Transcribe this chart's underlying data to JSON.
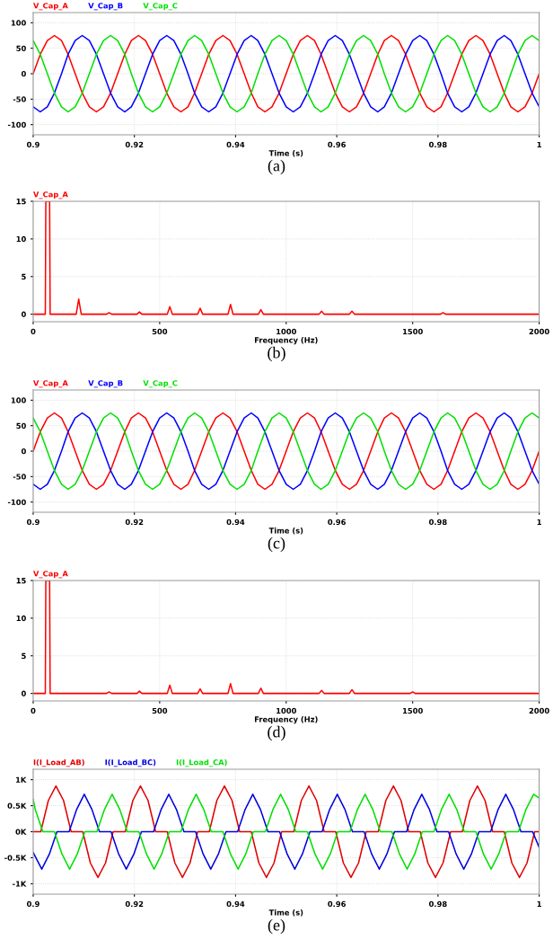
{
  "chart_data": [
    {
      "type": "line",
      "xlabel": "Time (s)",
      "annotations": [
        "(a)"
      ],
      "legend": "top left",
      "grid": true,
      "x": [
        0.9,
        0.9014,
        0.9028,
        0.9042,
        0.9056,
        0.9069,
        0.9083,
        0.9097,
        0.9111,
        0.9125,
        0.9139,
        0.9153,
        0.9167,
        0.9181,
        0.9194,
        0.9208,
        0.9222,
        0.9236,
        0.925,
        0.9264,
        0.9278,
        0.9292,
        0.9306,
        0.9319,
        0.9333,
        0.9347,
        0.9361,
        0.9375,
        0.9389,
        0.9403,
        0.9417,
        0.9431,
        0.9444,
        0.9458,
        0.9472,
        0.9486,
        0.95,
        0.9514,
        0.9528,
        0.9542,
        0.9556,
        0.9569,
        0.9583,
        0.9597,
        0.9611,
        0.9625,
        0.9639,
        0.9653,
        0.9667,
        0.9681,
        0.9694,
        0.9708,
        0.9722,
        0.9736,
        0.975,
        0.9764,
        0.9778,
        0.9792,
        0.9806,
        0.9819,
        0.9833,
        0.9847,
        0.9861,
        0.9875,
        0.9889,
        0.9903,
        0.9917,
        0.9931,
        0.9944,
        0.9958,
        0.9972,
        0.9986,
        1.0
      ],
      "xlim": [
        0.9,
        1.0
      ],
      "xticks": [
        0.9,
        0.92,
        0.94,
        0.96,
        0.98,
        1
      ],
      "ylim": [
        -120,
        120
      ],
      "yticks": [
        -100,
        -50,
        0,
        50,
        100
      ],
      "series": [
        {
          "name": "V_Cap_A",
          "color": "#ff0000",
          "values": [
            0,
            38,
            65,
            75,
            65,
            38,
            0,
            -38,
            -65,
            -75,
            -65,
            -38,
            0,
            38,
            65,
            75,
            65,
            38,
            0,
            -38,
            -65,
            -75,
            -65,
            -38,
            0,
            38,
            65,
            75,
            65,
            38,
            0,
            -38,
            -65,
            -75,
            -65,
            -38,
            0,
            38,
            65,
            75,
            65,
            38,
            0,
            -38,
            -65,
            -75,
            -65,
            -38,
            0,
            38,
            65,
            75,
            65,
            38,
            0,
            -38,
            -65,
            -75,
            -65,
            -38,
            0,
            38,
            65,
            75,
            65,
            38,
            0,
            -38,
            -65,
            -75,
            -65,
            -38,
            0
          ]
        },
        {
          "name": "V_Cap_B",
          "color": "#0000ff",
          "values": [
            -65,
            -75,
            -65,
            -38,
            0,
            38,
            65,
            75,
            65,
            38,
            0,
            -38,
            -65,
            -75,
            -65,
            -38,
            0,
            38,
            65,
            75,
            65,
            38,
            0,
            -38,
            -65,
            -75,
            -65,
            -38,
            0,
            38,
            65,
            75,
            65,
            38,
            0,
            -38,
            -65,
            -75,
            -65,
            -38,
            0,
            38,
            65,
            75,
            65,
            38,
            0,
            -38,
            -65,
            -75,
            -65,
            -38,
            0,
            38,
            65,
            75,
            65,
            38,
            0,
            -38,
            -65,
            -75,
            -65,
            -38,
            0,
            38,
            65,
            75,
            65,
            38,
            0,
            -38,
            -65
          ]
        },
        {
          "name": "V_Cap_C",
          "color": "#00e000",
          "values": [
            65,
            38,
            0,
            -38,
            -65,
            -75,
            -65,
            -38,
            0,
            38,
            65,
            75,
            65,
            38,
            0,
            -38,
            -65,
            -75,
            -65,
            -38,
            0,
            38,
            65,
            75,
            65,
            38,
            0,
            -38,
            -65,
            -75,
            -65,
            -38,
            0,
            38,
            65,
            75,
            65,
            38,
            0,
            -38,
            -65,
            -75,
            -65,
            -38,
            0,
            38,
            65,
            75,
            65,
            38,
            0,
            -38,
            -65,
            -75,
            -65,
            -38,
            0,
            38,
            65,
            75,
            65,
            38,
            0,
            -38,
            -65,
            -75,
            -65,
            -38,
            0,
            38,
            65,
            75,
            65
          ]
        }
      ]
    },
    {
      "type": "line",
      "xlabel": "Frequency (Hz)",
      "annotations": [
        "(b)"
      ],
      "legend": "top left",
      "grid": true,
      "x": [
        0,
        48,
        50,
        65,
        67,
        170,
        180,
        190,
        290,
        300,
        310,
        410,
        420,
        430,
        530,
        540,
        550,
        650,
        660,
        670,
        770,
        780,
        790,
        890,
        900,
        910,
        1130,
        1140,
        1150,
        1250,
        1260,
        1270,
        1610,
        1620,
        1630,
        2000
      ],
      "xlim": [
        0,
        2000
      ],
      "xticks": [
        0,
        500,
        1000,
        1500,
        2000
      ],
      "ylim": [
        -1,
        15
      ],
      "yticks": [
        0,
        5,
        10,
        15
      ],
      "series": [
        {
          "name": "V_Cap_A",
          "color": "#ff0000",
          "values": [
            0,
            0,
            15,
            15,
            0,
            0,
            2.0,
            0,
            0,
            0.2,
            0,
            0,
            0.3,
            0,
            0,
            1.0,
            0,
            0,
            0.8,
            0,
            0,
            1.3,
            0,
            0,
            0.6,
            0,
            0,
            0.4,
            0,
            0,
            0.4,
            0,
            0,
            0.2,
            0,
            0
          ]
        }
      ]
    },
    {
      "type": "line",
      "xlabel": "Time (s)",
      "annotations": [
        "(c)"
      ],
      "legend": "top left",
      "grid": true,
      "x": [
        0.9,
        0.9014,
        0.9028,
        0.9042,
        0.9056,
        0.9069,
        0.9083,
        0.9097,
        0.9111,
        0.9125,
        0.9139,
        0.9153,
        0.9167,
        0.9181,
        0.9194,
        0.9208,
        0.9222,
        0.9236,
        0.925,
        0.9264,
        0.9278,
        0.9292,
        0.9306,
        0.9319,
        0.9333,
        0.9347,
        0.9361,
        0.9375,
        0.9389,
        0.9403,
        0.9417,
        0.9431,
        0.9444,
        0.9458,
        0.9472,
        0.9486,
        0.95,
        0.9514,
        0.9528,
        0.9542,
        0.9556,
        0.9569,
        0.9583,
        0.9597,
        0.9611,
        0.9625,
        0.9639,
        0.9653,
        0.9667,
        0.9681,
        0.9694,
        0.9708,
        0.9722,
        0.9736,
        0.975,
        0.9764,
        0.9778,
        0.9792,
        0.9806,
        0.9819,
        0.9833,
        0.9847,
        0.9861,
        0.9875,
        0.9889,
        0.9903,
        0.9917,
        0.9931,
        0.9944,
        0.9958,
        0.9972,
        0.9986,
        1.0
      ],
      "xlim": [
        0.9,
        1.0
      ],
      "xticks": [
        0.9,
        0.92,
        0.94,
        0.96,
        0.98,
        1
      ],
      "ylim": [
        -120,
        120
      ],
      "yticks": [
        -100,
        -50,
        0,
        50,
        100
      ],
      "series": [
        {
          "name": "V_Cap_A",
          "color": "#ff0000",
          "values": [
            0,
            38,
            65,
            75,
            65,
            38,
            0,
            -38,
            -65,
            -75,
            -65,
            -38,
            0,
            38,
            65,
            75,
            65,
            38,
            0,
            -38,
            -65,
            -75,
            -65,
            -38,
            0,
            38,
            65,
            75,
            65,
            38,
            0,
            -38,
            -65,
            -75,
            -65,
            -38,
            0,
            38,
            65,
            75,
            65,
            38,
            0,
            -38,
            -65,
            -75,
            -65,
            -38,
            0,
            38,
            65,
            75,
            65,
            38,
            0,
            -38,
            -65,
            -75,
            -65,
            -38,
            0,
            38,
            65,
            75,
            65,
            38,
            0,
            -38,
            -65,
            -75,
            -65,
            -38,
            0
          ]
        },
        {
          "name": "V_Cap_B",
          "color": "#0000ff",
          "values": [
            -65,
            -75,
            -65,
            -38,
            0,
            38,
            65,
            75,
            65,
            38,
            0,
            -38,
            -65,
            -75,
            -65,
            -38,
            0,
            38,
            65,
            75,
            65,
            38,
            0,
            -38,
            -65,
            -75,
            -65,
            -38,
            0,
            38,
            65,
            75,
            65,
            38,
            0,
            -38,
            -65,
            -75,
            -65,
            -38,
            0,
            38,
            65,
            75,
            65,
            38,
            0,
            -38,
            -65,
            -75,
            -65,
            -38,
            0,
            38,
            65,
            75,
            65,
            38,
            0,
            -38,
            -65,
            -75,
            -65,
            -38,
            0,
            38,
            65,
            75,
            65,
            38,
            0,
            -38,
            -65
          ]
        },
        {
          "name": "V_Cap_C",
          "color": "#00e000",
          "values": [
            65,
            38,
            0,
            -38,
            -65,
            -75,
            -65,
            -38,
            0,
            38,
            65,
            75,
            65,
            38,
            0,
            -38,
            -65,
            -75,
            -65,
            -38,
            0,
            38,
            65,
            75,
            65,
            38,
            0,
            -38,
            -65,
            -75,
            -65,
            -38,
            0,
            38,
            65,
            75,
            65,
            38,
            0,
            -38,
            -65,
            -75,
            -65,
            -38,
            0,
            38,
            65,
            75,
            65,
            38,
            0,
            -38,
            -65,
            -75,
            -65,
            -38,
            0,
            38,
            65,
            75,
            65,
            38,
            0,
            -38,
            -65,
            -75,
            -65,
            -38,
            0,
            38,
            65,
            75,
            65
          ]
        }
      ]
    },
    {
      "type": "line",
      "xlabel": "Frequency (Hz)",
      "annotations": [
        "(d)"
      ],
      "legend": "top left",
      "grid": true,
      "x": [
        0,
        48,
        50,
        65,
        67,
        290,
        300,
        310,
        410,
        420,
        430,
        530,
        540,
        550,
        650,
        660,
        670,
        770,
        780,
        790,
        890,
        900,
        910,
        1130,
        1140,
        1150,
        1250,
        1260,
        1270,
        1490,
        1500,
        1510,
        2000
      ],
      "xlim": [
        0,
        2000
      ],
      "xticks": [
        0,
        500,
        1000,
        1500,
        2000
      ],
      "ylim": [
        -1,
        15
      ],
      "yticks": [
        0,
        5,
        10,
        15
      ],
      "series": [
        {
          "name": "V_Cap_A",
          "color": "#ff0000",
          "values": [
            0,
            0,
            15,
            15,
            0,
            0,
            0.2,
            0,
            0,
            0.3,
            0,
            0,
            1.1,
            0,
            0,
            0.6,
            0,
            0,
            1.3,
            0,
            0,
            0.7,
            0,
            0,
            0.4,
            0,
            0,
            0.5,
            0,
            0,
            0.2,
            0,
            0
          ]
        }
      ]
    },
    {
      "type": "line",
      "xlabel": "Time (s)",
      "annotations": [
        "(e)"
      ],
      "legend": "top left",
      "grid": true,
      "xlim": [
        0.9,
        1.0
      ],
      "xticks": [
        0.9,
        0.92,
        0.94,
        0.96,
        0.98,
        1
      ],
      "ylim": [
        -1200,
        1200
      ],
      "yticks": [
        {
          "value": -1000,
          "label": "-1K"
        },
        {
          "value": -500,
          "label": "-0.5K"
        },
        {
          "value": 0,
          "label": "0K"
        },
        {
          "value": 500,
          "label": "0.5K"
        },
        {
          "value": 1000,
          "label": "1K"
        }
      ],
      "series": [
        {
          "name": "I(I_Load_AB)",
          "color": "#e00000",
          "x": [
            0.9,
            0.9015,
            0.903,
            0.9045,
            0.906,
            0.9075,
            0.9098,
            0.9113,
            0.9128,
            0.9143,
            0.9158,
            0.9182,
            0.9197,
            0.9212,
            0.9227,
            0.9242,
            0.9265,
            0.928,
            0.9295,
            0.931,
            0.9325,
            0.9348,
            0.9363,
            0.9378,
            0.9393,
            0.9408,
            0.9431,
            0.9446,
            0.9461,
            0.9476,
            0.9491,
            0.9515,
            0.953,
            0.9545,
            0.956,
            0.9575,
            0.9598,
            0.9613,
            0.9628,
            0.9643,
            0.9658,
            0.9682,
            0.9697,
            0.9712,
            0.9727,
            0.9742,
            0.9765,
            0.978,
            0.9795,
            0.981,
            0.9825,
            0.9848,
            0.9863,
            0.9878,
            0.9893,
            0.9908,
            0.9931,
            0.9946,
            0.9961,
            0.9976,
            0.9991,
            1.0
          ],
          "values": [
            0,
            0,
            600,
            880,
            600,
            0,
            0,
            -600,
            -880,
            -600,
            0,
            0,
            600,
            880,
            600,
            0,
            0,
            -600,
            -880,
            -600,
            0,
            0,
            600,
            880,
            600,
            0,
            0,
            -600,
            -880,
            -600,
            0,
            0,
            600,
            880,
            600,
            0,
            0,
            -600,
            -880,
            -600,
            0,
            0,
            600,
            880,
            600,
            0,
            0,
            -600,
            -880,
            -600,
            0,
            0,
            600,
            880,
            600,
            0,
            0,
            -600,
            -880,
            -600,
            0,
            0
          ]
        },
        {
          "name": "I(I_Load_BC)",
          "color": "#0000e0",
          "x": [
            0.9,
            0.9017,
            0.9032,
            0.9047,
            0.9071,
            0.9086,
            0.9101,
            0.9116,
            0.9131,
            0.9154,
            0.9169,
            0.9184,
            0.9199,
            0.9214,
            0.9238,
            0.9253,
            0.9268,
            0.9283,
            0.9298,
            0.9321,
            0.9336,
            0.9351,
            0.9366,
            0.9381,
            0.9404,
            0.9419,
            0.9434,
            0.9449,
            0.9464,
            0.9487,
            0.9502,
            0.9517,
            0.9532,
            0.9547,
            0.9571,
            0.9586,
            0.9601,
            0.9616,
            0.9631,
            0.9654,
            0.9669,
            0.9684,
            0.9699,
            0.9714,
            0.9738,
            0.9753,
            0.9768,
            0.9783,
            0.9798,
            0.9821,
            0.9836,
            0.9851,
            0.9866,
            0.9881,
            0.9904,
            0.9919,
            0.9934,
            0.9949,
            0.9964,
            0.9987,
            1.0
          ],
          "values": [
            -400,
            -720,
            -430,
            0,
            0,
            430,
            720,
            430,
            0,
            0,
            -430,
            -720,
            -430,
            0,
            0,
            430,
            720,
            430,
            0,
            0,
            -430,
            -720,
            -430,
            0,
            0,
            430,
            720,
            430,
            0,
            0,
            -430,
            -720,
            -430,
            0,
            0,
            430,
            720,
            430,
            0,
            0,
            -430,
            -720,
            -430,
            0,
            0,
            430,
            720,
            430,
            0,
            0,
            -430,
            -720,
            -430,
            0,
            0,
            430,
            720,
            430,
            0,
            0,
            -300
          ]
        },
        {
          "name": "I(I_Load_CA)",
          "color": "#00e000",
          "x": [
            0.9,
            0.9004,
            0.9019,
            0.9042,
            0.9057,
            0.9072,
            0.9087,
            0.9102,
            0.9126,
            0.9141,
            0.9156,
            0.9171,
            0.9186,
            0.9209,
            0.9224,
            0.9239,
            0.9254,
            0.9269,
            0.9292,
            0.9307,
            0.9322,
            0.9337,
            0.9352,
            0.9375,
            0.939,
            0.9405,
            0.942,
            0.9435,
            0.9459,
            0.9474,
            0.9489,
            0.9504,
            0.9519,
            0.9542,
            0.9557,
            0.9572,
            0.9587,
            0.9602,
            0.9626,
            0.9641,
            0.9656,
            0.9671,
            0.9686,
            0.9709,
            0.9724,
            0.9739,
            0.9754,
            0.9769,
            0.9792,
            0.9807,
            0.9822,
            0.9837,
            0.9852,
            0.9875,
            0.989,
            0.9905,
            0.992,
            0.9935,
            0.9959,
            0.9974,
            0.9989,
            1.0
          ],
          "values": [
            620,
            430,
            0,
            0,
            -430,
            -720,
            -430,
            0,
            0,
            430,
            720,
            430,
            0,
            0,
            -430,
            -720,
            -430,
            0,
            0,
            430,
            720,
            430,
            0,
            0,
            -430,
            -720,
            -430,
            0,
            0,
            430,
            720,
            430,
            0,
            0,
            -430,
            -720,
            -430,
            0,
            0,
            430,
            720,
            430,
            0,
            0,
            -430,
            -720,
            -430,
            0,
            0,
            430,
            720,
            430,
            0,
            0,
            -430,
            -720,
            -430,
            0,
            0,
            430,
            720,
            650
          ]
        }
      ]
    }
  ]
}
